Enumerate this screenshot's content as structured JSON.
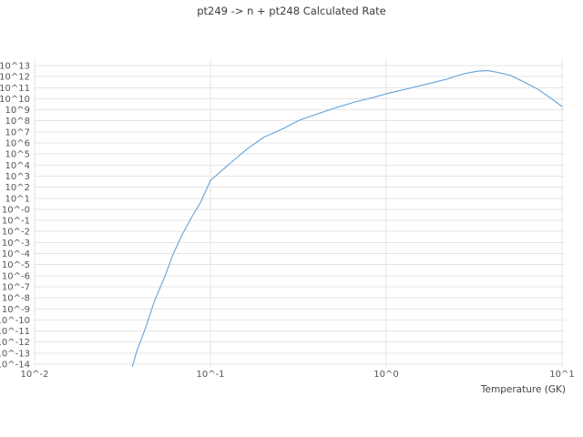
{
  "page": {
    "background": "#ffffff"
  },
  "chart_data": {
    "type": "line",
    "title": "pt249 -> n + pt248 Calculated Rate",
    "xlabel": "Temperature (GK)",
    "ylabel": "",
    "x_scale": "log",
    "y_scale": "log",
    "grid": true,
    "legend": false,
    "xlim_log10": [
      -2,
      1.05
    ],
    "ylim_log10": [
      -14.3,
      13.4
    ],
    "x_ticks": {
      "labels": [
        "10^-2",
        "10^-1",
        "10^0",
        "10^1"
      ],
      "values": [
        0.01,
        0.1,
        1,
        10
      ]
    },
    "y_ticks": {
      "labels": [
        "10^13",
        "10^12",
        "10^11",
        "10^10",
        "10^9",
        "10^8",
        "10^7",
        "10^6",
        "10^5",
        "10^4",
        "10^3",
        "10^2",
        "10^1",
        "10^-0",
        "10^-1",
        "10^-2",
        "10^-3",
        "10^-4",
        "10^-5",
        "10^-6",
        "10^-7",
        "10^-8",
        "10^-9",
        "10^-10",
        "10^-11",
        "10^-12",
        "10^-13",
        "10^-14"
      ],
      "exponents": [
        13,
        12,
        11,
        10,
        9,
        8,
        7,
        6,
        5,
        4,
        3,
        2,
        1,
        0,
        -1,
        -2,
        -3,
        -4,
        -5,
        -6,
        -7,
        -8,
        -9,
        -10,
        -11,
        -12,
        -13,
        -14
      ]
    },
    "colors": {
      "line": "#6fa8dc",
      "grid": "#e5e5e5",
      "tick_text": "#555555",
      "title_text": "#3c3c3c",
      "axis_label_text": "#444444"
    },
    "series": [
      {
        "name": "calculated rate",
        "x": [
          0.036,
          0.038,
          0.043,
          0.048,
          0.055,
          0.061,
          0.069,
          0.078,
          0.088,
          0.1,
          0.126,
          0.16,
          0.2,
          0.26,
          0.32,
          0.41,
          0.52,
          0.66,
          0.84,
          1.0,
          1.36,
          1.73,
          2.19,
          2.62,
          2.95,
          3.34,
          3.77,
          4.25,
          5.1,
          6.1,
          7.3,
          8.7,
          10.0
        ],
        "log10_y": [
          -14.2,
          -12.9,
          -10.6,
          -8.3,
          -6.1,
          -4.15,
          -2.3,
          -0.75,
          0.65,
          2.6,
          4.0,
          5.4,
          6.5,
          7.3,
          8.05,
          8.65,
          9.2,
          9.7,
          10.1,
          10.45,
          10.95,
          11.35,
          11.75,
          12.15,
          12.35,
          12.5,
          12.55,
          12.4,
          12.1,
          11.5,
          10.85,
          10.0,
          9.3
        ]
      }
    ]
  }
}
